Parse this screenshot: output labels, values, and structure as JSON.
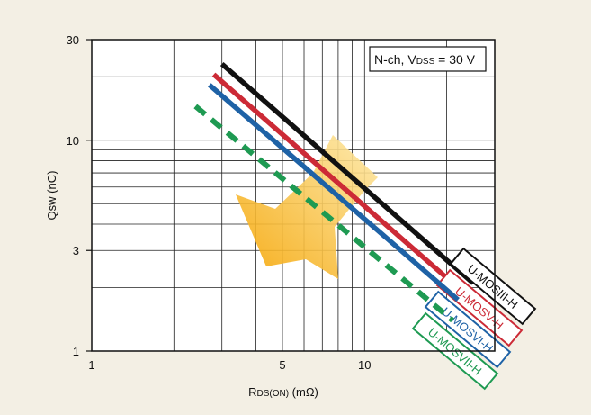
{
  "chart_data": {
    "type": "line",
    "xlabel": {
      "main": "R",
      "sub": "DS(ON)",
      "unit": " (mΩ)"
    },
    "ylabel": "Qsw (nC)",
    "x_scale": "log",
    "y_scale": "log",
    "xlim": [
      1,
      30
    ],
    "ylim": [
      1,
      30
    ],
    "x_ticks": [
      {
        "value": 1,
        "label": "1"
      },
      {
        "value": 5,
        "label": "5"
      },
      {
        "value": 10,
        "label": "10"
      }
    ],
    "y_ticks": [
      {
        "value": 1,
        "label": "1"
      },
      {
        "value": 3,
        "label": "3"
      },
      {
        "value": 10,
        "label": "10"
      },
      {
        "value": 30,
        "label": "30"
      }
    ],
    "grid": true,
    "condition_box": {
      "prefix": "N-ch, V",
      "sub": "DSS",
      "suffix": " = 30 V"
    },
    "series": [
      {
        "name": "U-MOSIII-H",
        "color": "#111111",
        "dash": false,
        "x": [
          3.0,
          25.0
        ],
        "y": [
          23.0,
          2.1
        ]
      },
      {
        "name": "U-MOSV-H",
        "color": "#cc2a36",
        "dash": false,
        "x": [
          2.8,
          23.0
        ],
        "y": [
          20.5,
          1.9
        ]
      },
      {
        "name": "U-MOSVI-H",
        "color": "#1e62a6",
        "dash": false,
        "x": [
          2.7,
          22.0
        ],
        "y": [
          18.3,
          1.75
        ]
      },
      {
        "name": "U-MOSVII-H",
        "color": "#1e9a52",
        "dash": true,
        "x": [
          2.4,
          21.0
        ],
        "y": [
          14.5,
          1.4
        ]
      }
    ],
    "annotation": {
      "type": "arrow",
      "meaning": "improvement direction",
      "color_start": "#f7b400",
      "color_end": "#f7d37a"
    }
  }
}
